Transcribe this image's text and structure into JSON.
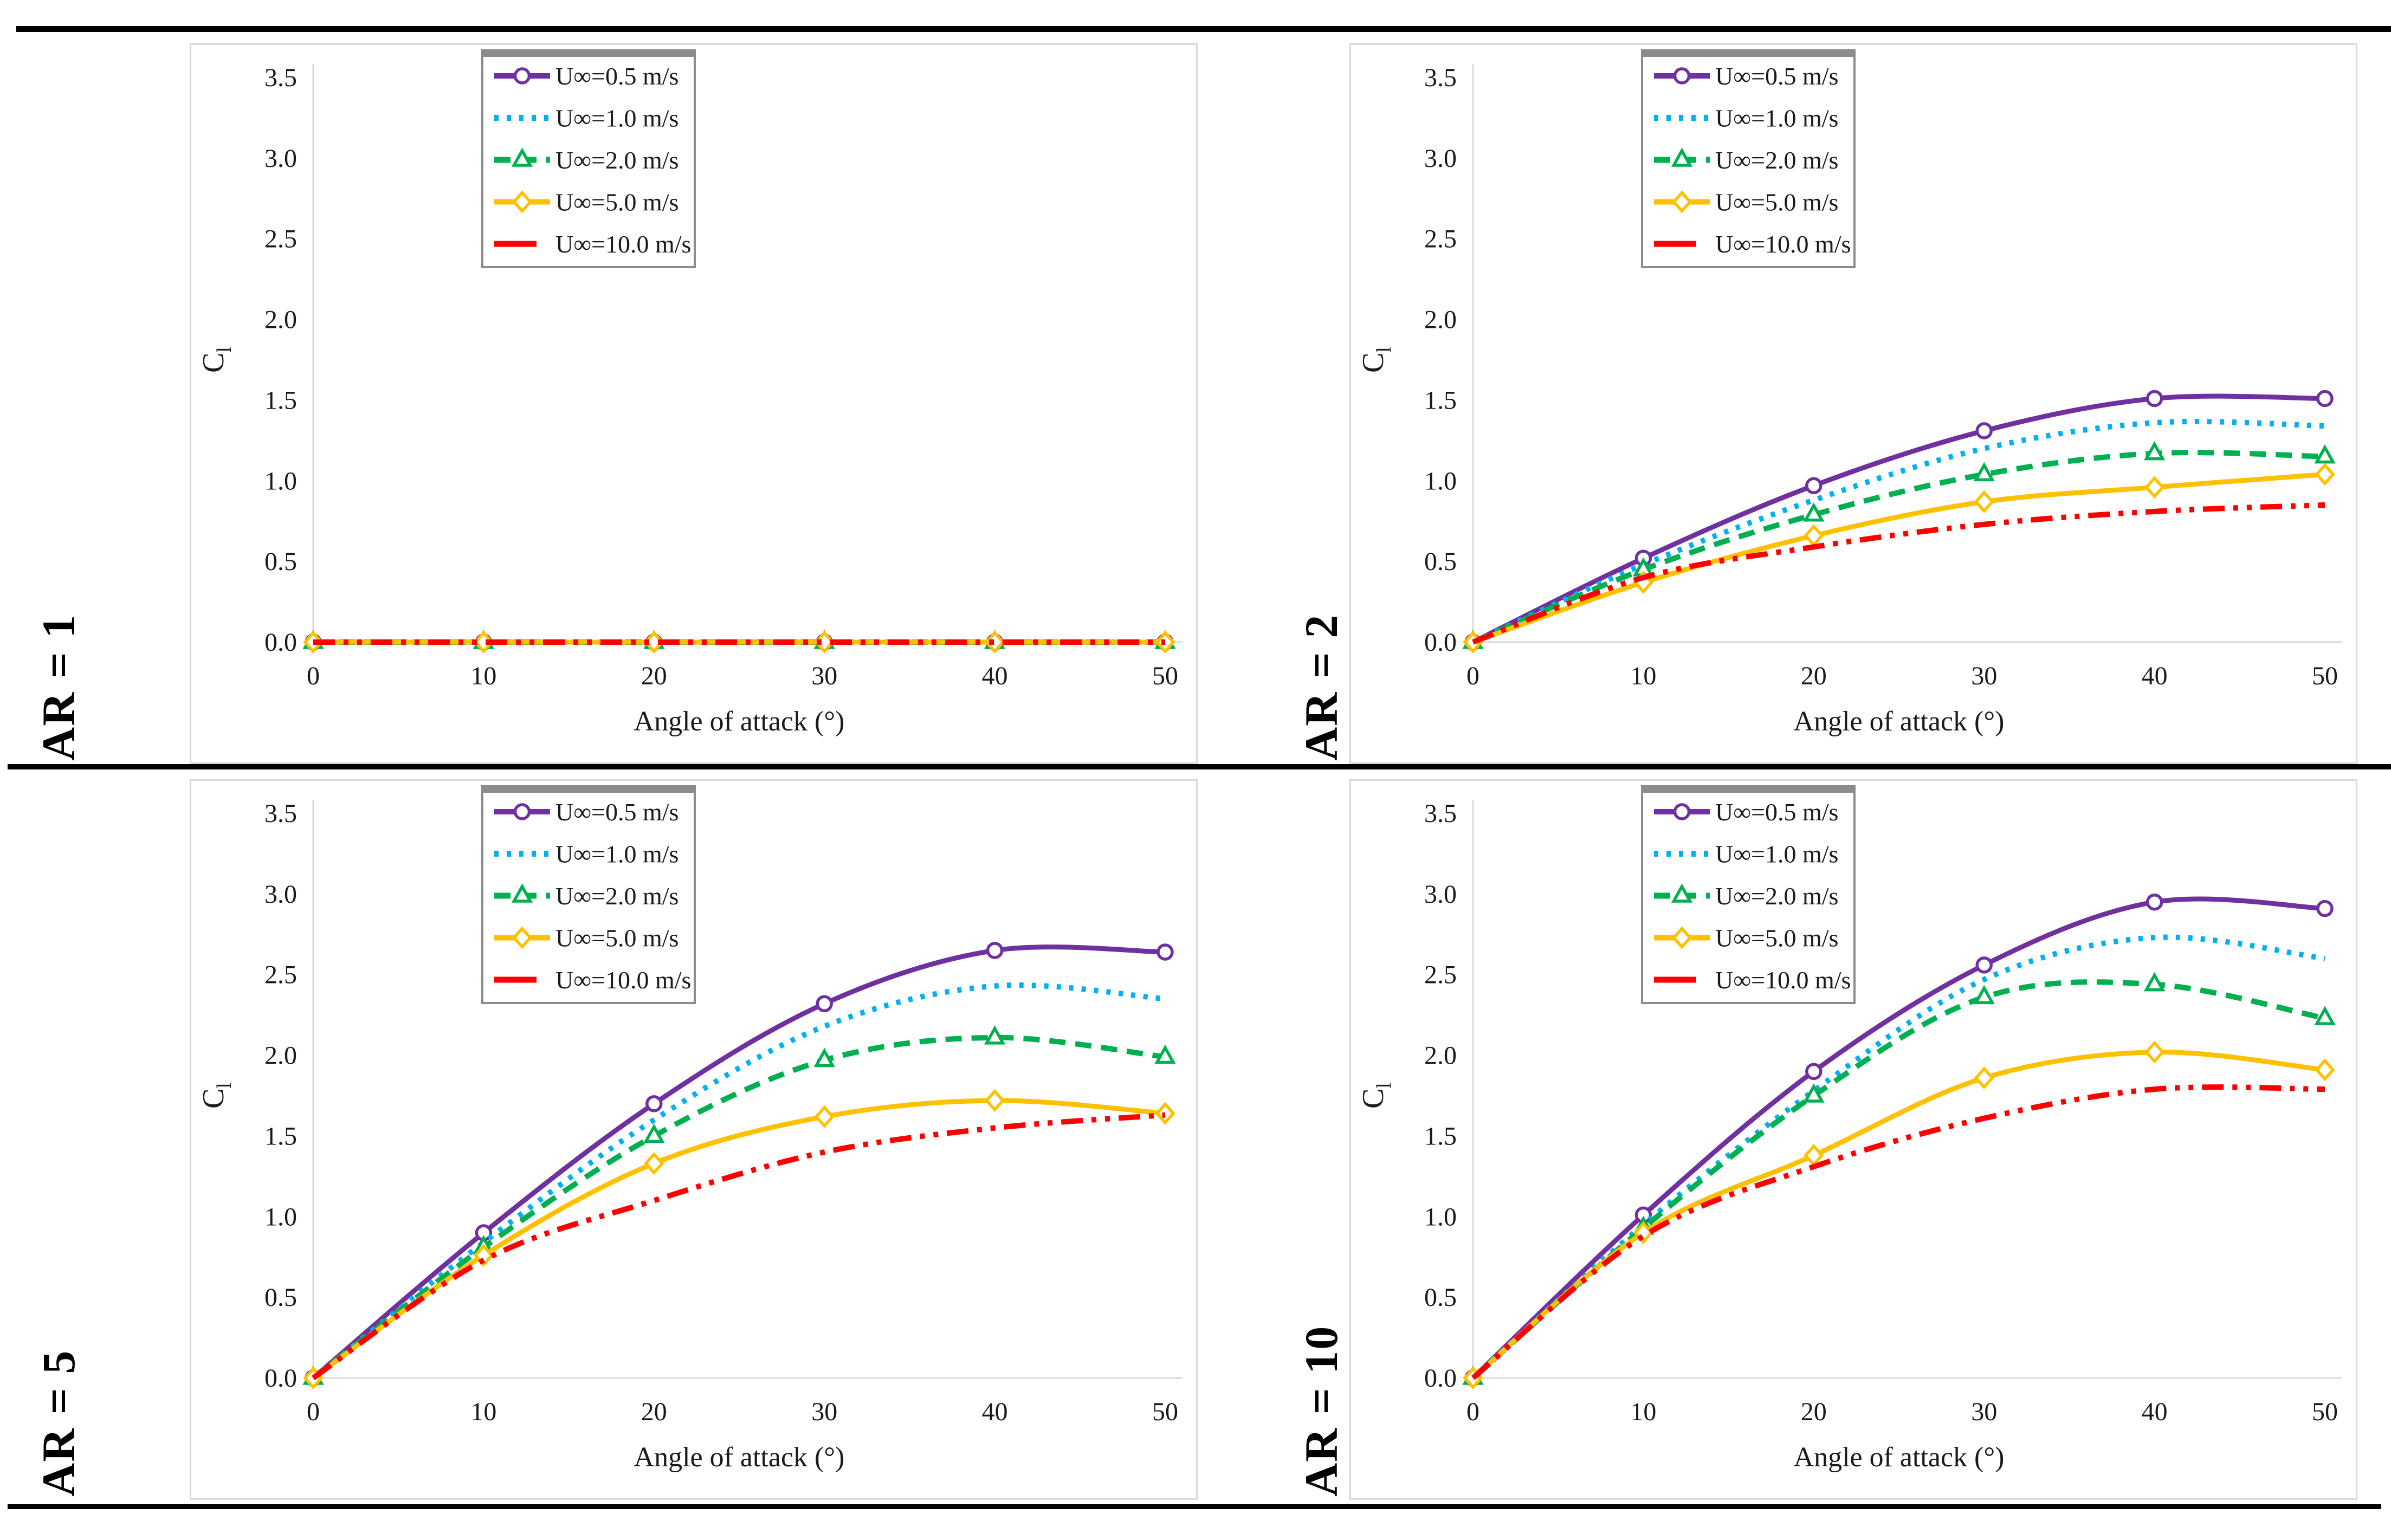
{
  "figure": {
    "x_tick_labels": [
      "0",
      "10",
      "20",
      "30",
      "40",
      "50"
    ],
    "y_tick_labels": [
      "0.0",
      "0.5",
      "1.0",
      "1.5",
      "2.0",
      "2.5",
      "3.0",
      "3.5"
    ],
    "xlabel": "Angle of attack (°)",
    "ylabel_main": "C",
    "ylabel_sub": "l",
    "axis_color": "#d9d9d9",
    "text_color": "#1a1a1a",
    "legend_border_color": "#8c8c8c",
    "legend_position": "top-left",
    "grid": false,
    "series_styles": [
      {
        "key": "u05",
        "color": "#7030A0",
        "line": "solid",
        "marker": "circle"
      },
      {
        "key": "u10",
        "color": "#00B0F0",
        "line": "dotted",
        "marker": "none"
      },
      {
        "key": "u20",
        "color": "#00B050",
        "line": "dashed",
        "marker": "triangle"
      },
      {
        "key": "u50",
        "color": "#FFC000",
        "line": "solid",
        "marker": "diamond"
      },
      {
        "key": "u100",
        "color": "#FF0000",
        "line": "dash-dot-dot",
        "marker": "none"
      }
    ]
  },
  "chart_data": [
    {
      "type": "line",
      "title": "AR = 1",
      "x": [
        0,
        10,
        20,
        30,
        40,
        50
      ],
      "xlabel": "Angle of attack (°)",
      "ylabel": "Cl",
      "ylim": [
        0.0,
        3.5
      ],
      "xlim": [
        0,
        50
      ],
      "series": [
        {
          "name": "U∞=0.5 m/s",
          "values": [
            0,
            0,
            0,
            0,
            0,
            0
          ]
        },
        {
          "name": "U∞=1.0 m/s",
          "values": [
            0,
            0,
            0,
            0,
            0,
            0
          ]
        },
        {
          "name": "U∞=2.0 m/s",
          "values": [
            0,
            0,
            0,
            0,
            0,
            0
          ]
        },
        {
          "name": "U∞=5.0 m/s",
          "values": [
            0,
            0,
            0,
            0,
            0,
            0
          ]
        },
        {
          "name": "U∞=10.0 m/s",
          "values": [
            0,
            0,
            0,
            0,
            0,
            0
          ]
        }
      ]
    },
    {
      "type": "line",
      "title": "AR = 2",
      "x": [
        0,
        10,
        20,
        30,
        40,
        50
      ],
      "xlabel": "Angle of attack (°)",
      "ylabel": "Cl",
      "ylim": [
        0.0,
        3.5
      ],
      "xlim": [
        0,
        50
      ],
      "series": [
        {
          "name": "U∞=0.5 m/s",
          "values": [
            0,
            0.52,
            0.97,
            1.31,
            1.51,
            1.51
          ]
        },
        {
          "name": "U∞=1.0 m/s",
          "values": [
            0,
            0.48,
            0.88,
            1.2,
            1.36,
            1.34
          ]
        },
        {
          "name": "U∞=2.0 m/s",
          "values": [
            0,
            0.45,
            0.79,
            1.04,
            1.17,
            1.15
          ]
        },
        {
          "name": "U∞=5.0 m/s",
          "values": [
            0,
            0.37,
            0.66,
            0.87,
            0.96,
            1.04
          ]
        },
        {
          "name": "U∞=10.0 m/s",
          "values": [
            0,
            0.4,
            0.59,
            0.73,
            0.81,
            0.85
          ]
        }
      ]
    },
    {
      "type": "line",
      "title": "AR = 5",
      "x": [
        0,
        10,
        20,
        30,
        40,
        50
      ],
      "xlabel": "Angle of attack (°)",
      "ylabel": "Cl",
      "ylim": [
        0.0,
        3.5
      ],
      "xlim": [
        0,
        50
      ],
      "series": [
        {
          "name": "U∞=0.5 m/s",
          "values": [
            0,
            0.9,
            1.7,
            2.32,
            2.65,
            2.64
          ]
        },
        {
          "name": "U∞=1.0 m/s",
          "values": [
            0,
            0.84,
            1.6,
            2.18,
            2.43,
            2.35
          ]
        },
        {
          "name": "U∞=2.0 m/s",
          "values": [
            0,
            0.81,
            1.5,
            1.97,
            2.11,
            1.99
          ]
        },
        {
          "name": "U∞=5.0 m/s",
          "values": [
            0,
            0.76,
            1.33,
            1.62,
            1.72,
            1.64
          ]
        },
        {
          "name": "U∞=10.0 m/s",
          "values": [
            0,
            0.73,
            1.1,
            1.4,
            1.55,
            1.63
          ]
        }
      ]
    },
    {
      "type": "line",
      "title": "AR = 10",
      "x": [
        0,
        10,
        20,
        30,
        40,
        50
      ],
      "xlabel": "Angle of attack (°)",
      "ylabel": "Cl",
      "ylim": [
        0.0,
        3.5
      ],
      "xlim": [
        0,
        50
      ],
      "series": [
        {
          "name": "U∞=0.5 m/s",
          "values": [
            0,
            1.01,
            1.9,
            2.56,
            2.95,
            2.91
          ]
        },
        {
          "name": "U∞=1.0 m/s",
          "values": [
            0,
            0.95,
            1.78,
            2.47,
            2.73,
            2.6
          ]
        },
        {
          "name": "U∞=2.0 m/s",
          "values": [
            0,
            0.93,
            1.75,
            2.36,
            2.44,
            2.23
          ]
        },
        {
          "name": "U∞=5.0 m/s",
          "values": [
            0,
            0.9,
            1.38,
            1.86,
            2.02,
            1.91
          ]
        },
        {
          "name": "U∞=10.0 m/s",
          "values": [
            0,
            0.88,
            1.31,
            1.61,
            1.79,
            1.79
          ]
        }
      ]
    }
  ]
}
